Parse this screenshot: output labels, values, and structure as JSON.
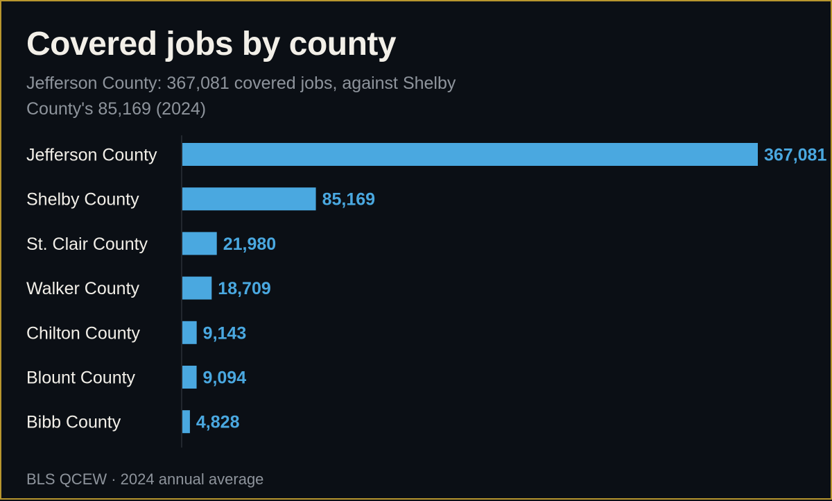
{
  "header": {
    "title": "Covered jobs by county",
    "subtitle": "Jefferson County: 367,081 covered jobs, against Shelby County's 85,169 (2024)"
  },
  "footer": {
    "source": "BLS QCEW · 2024 annual average"
  },
  "colors": {
    "background": "#0b0f15",
    "frame": "#b8962e",
    "bar": "#4aa8e0",
    "text": "#f2efe8",
    "muted": "#8e949c"
  },
  "chart_data": {
    "type": "bar",
    "orientation": "horizontal",
    "title": "Covered jobs by county",
    "subtitle": "Jefferson County: 367,081 covered jobs, against Shelby County's 85,169 (2024)",
    "categories": [
      "Jefferson County",
      "Shelby County",
      "St. Clair County",
      "Walker County",
      "Chilton County",
      "Blount County",
      "Bibb County"
    ],
    "values": [
      367081,
      85169,
      21980,
      18709,
      9143,
      9094,
      4828
    ],
    "value_labels": [
      "367,081",
      "85,169",
      "21,980",
      "18,709",
      "9,143",
      "9,094",
      "4,828"
    ],
    "xlim": [
      0,
      367081
    ],
    "grid": false,
    "legend": "none"
  }
}
